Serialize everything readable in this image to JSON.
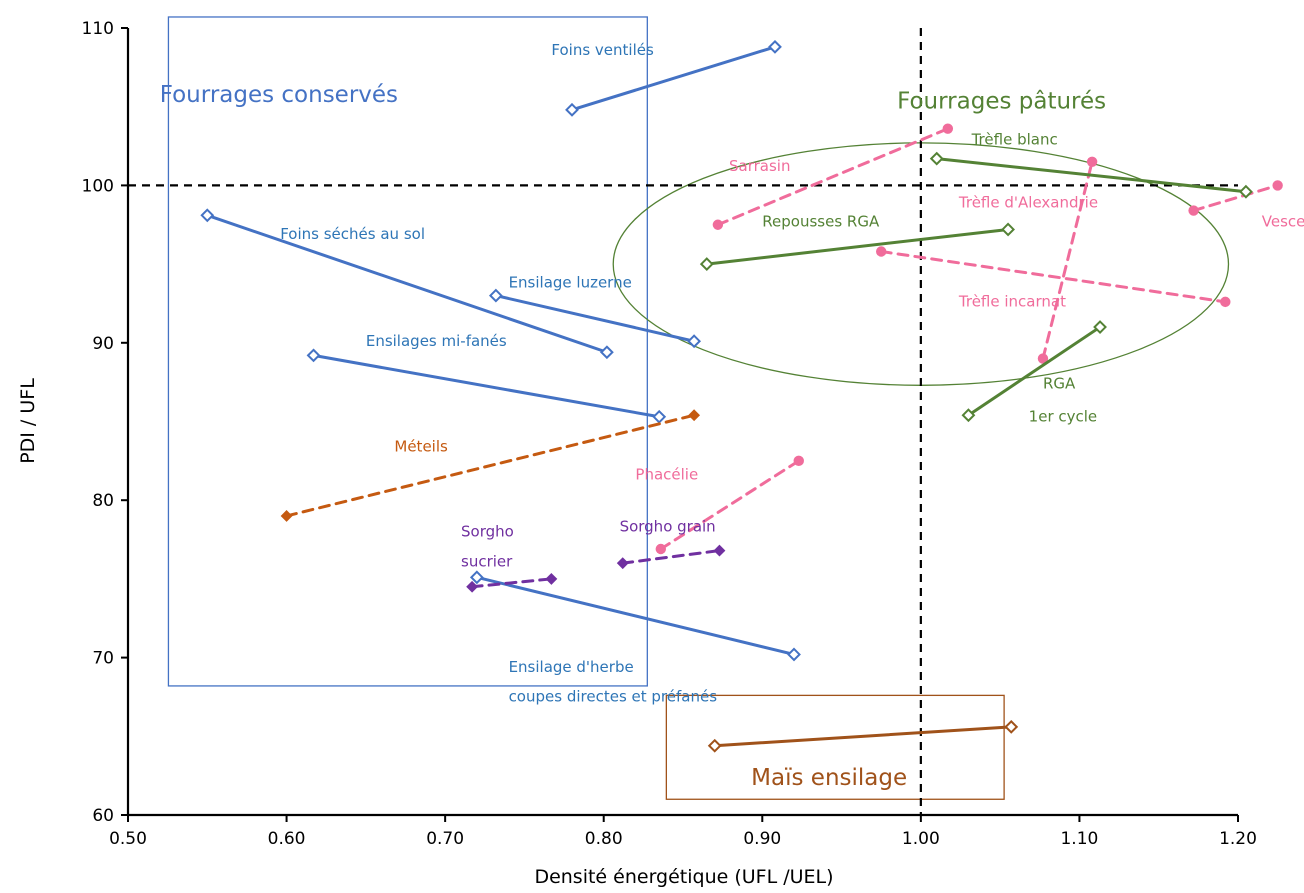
{
  "chart_data": {
    "type": "line",
    "xlabel": "Densité énergétique (UFL /UEL)",
    "ylabel": "PDI / UFL",
    "xlim": [
      0.5,
      1.2
    ],
    "ylim": [
      60,
      110
    ],
    "xticks": [
      "0.50",
      "0.60",
      "0.70",
      "0.80",
      "0.90",
      "1.00",
      "1.10",
      "1.20"
    ],
    "yticks": [
      "60",
      "70",
      "80",
      "90",
      "100",
      "110"
    ],
    "grid": false,
    "legend": "none",
    "reference_lines": {
      "x": 1.0,
      "y": 100
    },
    "colors": {
      "blue": "#4472c4",
      "blue_text": "#2e75b6",
      "green": "#548235",
      "pink": "#f06c9b",
      "purple": "#7030a0",
      "orange": "#c55a11",
      "brown": "#a0521a"
    },
    "series": [
      {
        "name": "Foins ventilés",
        "color": "blue",
        "style": "solid",
        "marker": "diamond-open",
        "points": [
          [
            0.78,
            104.8
          ],
          [
            0.908,
            108.8
          ]
        ]
      },
      {
        "name": "Foins séchés au sol",
        "color": "blue",
        "style": "solid",
        "marker": "diamond-open",
        "points": [
          [
            0.55,
            98.1
          ],
          [
            0.802,
            89.4
          ]
        ]
      },
      {
        "name": "Ensilage luzerne",
        "color": "blue",
        "style": "solid",
        "marker": "diamond-open",
        "points": [
          [
            0.732,
            93.0
          ],
          [
            0.857,
            90.1
          ]
        ]
      },
      {
        "name": "Ensilages mi-fanés",
        "color": "blue",
        "style": "solid",
        "marker": "diamond-open",
        "points": [
          [
            0.617,
            89.2
          ],
          [
            0.835,
            85.3
          ]
        ]
      },
      {
        "name": "Ensilage d'herbe coupes directes et préfanés",
        "color": "blue",
        "style": "solid",
        "marker": "diamond-open",
        "points": [
          [
            0.72,
            75.1
          ],
          [
            0.92,
            70.2
          ]
        ]
      },
      {
        "name": "Méteils",
        "color": "orange",
        "style": "dashed",
        "marker": "diamond",
        "points": [
          [
            0.6,
            79.0
          ],
          [
            0.857,
            85.4
          ]
        ]
      },
      {
        "name": "Sorgho sucrier",
        "color": "purple",
        "style": "dashed",
        "marker": "diamond",
        "points": [
          [
            0.717,
            74.5
          ],
          [
            0.767,
            75.0
          ]
        ]
      },
      {
        "name": "Sorgho grain",
        "color": "purple",
        "style": "dashed",
        "marker": "diamond",
        "points": [
          [
            0.812,
            76.0
          ],
          [
            0.873,
            76.8
          ]
        ]
      },
      {
        "name": "Phacélie",
        "color": "pink",
        "style": "dashed",
        "marker": "circle",
        "points": [
          [
            0.836,
            76.9
          ],
          [
            0.923,
            82.5
          ]
        ]
      },
      {
        "name": "Sarrasin",
        "color": "pink",
        "style": "dashed",
        "marker": "circle",
        "points": [
          [
            0.872,
            97.5
          ],
          [
            1.017,
            103.6
          ]
        ]
      },
      {
        "name": "Trèfle d'Alexandrie",
        "color": "pink",
        "style": "dashed",
        "marker": "circle",
        "points": [
          [
            1.172,
            98.4
          ],
          [
            1.225,
            100.0
          ]
        ]
      },
      {
        "name": "Trèfle incarnat",
        "color": "pink",
        "style": "dashed",
        "marker": "circle",
        "points": [
          [
            0.975,
            95.8
          ],
          [
            1.192,
            92.6
          ]
        ]
      },
      {
        "name": "Vesce",
        "color": "pink",
        "style": "dashed",
        "marker": "circle",
        "points": [
          [
            1.077,
            89.0
          ],
          [
            1.108,
            101.5
          ]
        ]
      },
      {
        "name": "Trèfle blanc",
        "color": "green",
        "style": "solid",
        "marker": "diamond-open",
        "points": [
          [
            1.01,
            101.7
          ],
          [
            1.205,
            99.6
          ]
        ]
      },
      {
        "name": "Repousses RGA",
        "color": "green",
        "style": "solid",
        "marker": "diamond-open",
        "points": [
          [
            0.865,
            95.0
          ],
          [
            1.055,
            97.2
          ]
        ]
      },
      {
        "name": "RGA 1er cycle",
        "color": "green",
        "style": "solid",
        "marker": "diamond-open",
        "points": [
          [
            1.03,
            85.4
          ],
          [
            1.113,
            91.0
          ]
        ]
      },
      {
        "name": "Maïs ensilage",
        "color": "brown",
        "style": "solid",
        "marker": "diamond-open",
        "points": [
          [
            0.87,
            64.4
          ],
          [
            1.057,
            65.6
          ]
        ]
      }
    ],
    "annotations": [
      {
        "text": "Fourrages conservés",
        "color": "blue",
        "size": "big",
        "x": 0.52,
        "y": 105.3
      },
      {
        "text": "Fourrages pâturés",
        "color": "green",
        "size": "big",
        "x": 0.985,
        "y": 104.9
      },
      {
        "text": "Maïs ensilage",
        "color": "brown",
        "size": "big",
        "x": 0.893,
        "y": 61.9
      },
      {
        "text": "Foins ventilés",
        "color": "blue_text",
        "x": 0.767,
        "y": 108.3
      },
      {
        "text": "Foins séchés au sol",
        "color": "blue_text",
        "x": 0.596,
        "y": 96.6
      },
      {
        "text": "Ensilage luzerne",
        "color": "blue_text",
        "x": 0.74,
        "y": 93.5
      },
      {
        "text": "Ensilages mi-fanés",
        "color": "blue_text",
        "x": 0.65,
        "y": 89.8
      },
      {
        "text": "Ensilage d'herbe",
        "color": "blue_text",
        "x": 0.74,
        "y": 69.1
      },
      {
        "text": "coupes directes et préfanés",
        "color": "blue_text",
        "x": 0.74,
        "y": 67.2
      },
      {
        "text": "Méteils",
        "color": "orange",
        "x": 0.668,
        "y": 83.1
      },
      {
        "text": "Phacélie",
        "color": "pink",
        "x": 0.82,
        "y": 81.3
      },
      {
        "text": "Sorgho grain",
        "color": "purple",
        "x": 0.81,
        "y": 78.0
      },
      {
        "text": "Sorgho",
        "color": "purple",
        "x": 0.71,
        "y": 77.7
      },
      {
        "text": "sucrier",
        "color": "purple",
        "x": 0.71,
        "y": 75.8
      },
      {
        "text": "Sarrasin",
        "color": "pink",
        "x": 0.879,
        "y": 100.9
      },
      {
        "text": "Trèfle blanc",
        "color": "green",
        "x": 1.032,
        "y": 102.6
      },
      {
        "text": "Repousses RGA",
        "color": "green",
        "x": 0.9,
        "y": 97.4
      },
      {
        "text": "Trèfle d'Alexandrie",
        "color": "pink",
        "x": 1.024,
        "y": 98.6
      },
      {
        "text": "Vesce",
        "color": "pink",
        "x": 1.215,
        "y": 97.4
      },
      {
        "text": "Trèfle incarnat",
        "color": "pink",
        "x": 1.024,
        "y": 92.3
      },
      {
        "text": "RGA",
        "color": "green",
        "x": 1.077,
        "y": 87.1
      },
      {
        "text": "1er cycle",
        "color": "green",
        "x": 1.068,
        "y": 85.0
      }
    ],
    "regions": [
      {
        "name": "Fourrages conservés",
        "shape": "rect",
        "color": "blue",
        "x0": 0.5255,
        "x1": 0.8275,
        "y0": 68.2,
        "y1": 110.7
      },
      {
        "name": "Maïs ensilage",
        "shape": "rect",
        "color": "brown",
        "x0": 0.8395,
        "x1": 1.0525,
        "y0": 61.0,
        "y1": 67.6
      },
      {
        "name": "Fourrages pâturés",
        "shape": "ellipse",
        "color": "green",
        "cx": 1.0,
        "cy": 95.0,
        "rx": 0.194,
        "ry": 7.7
      }
    ]
  }
}
